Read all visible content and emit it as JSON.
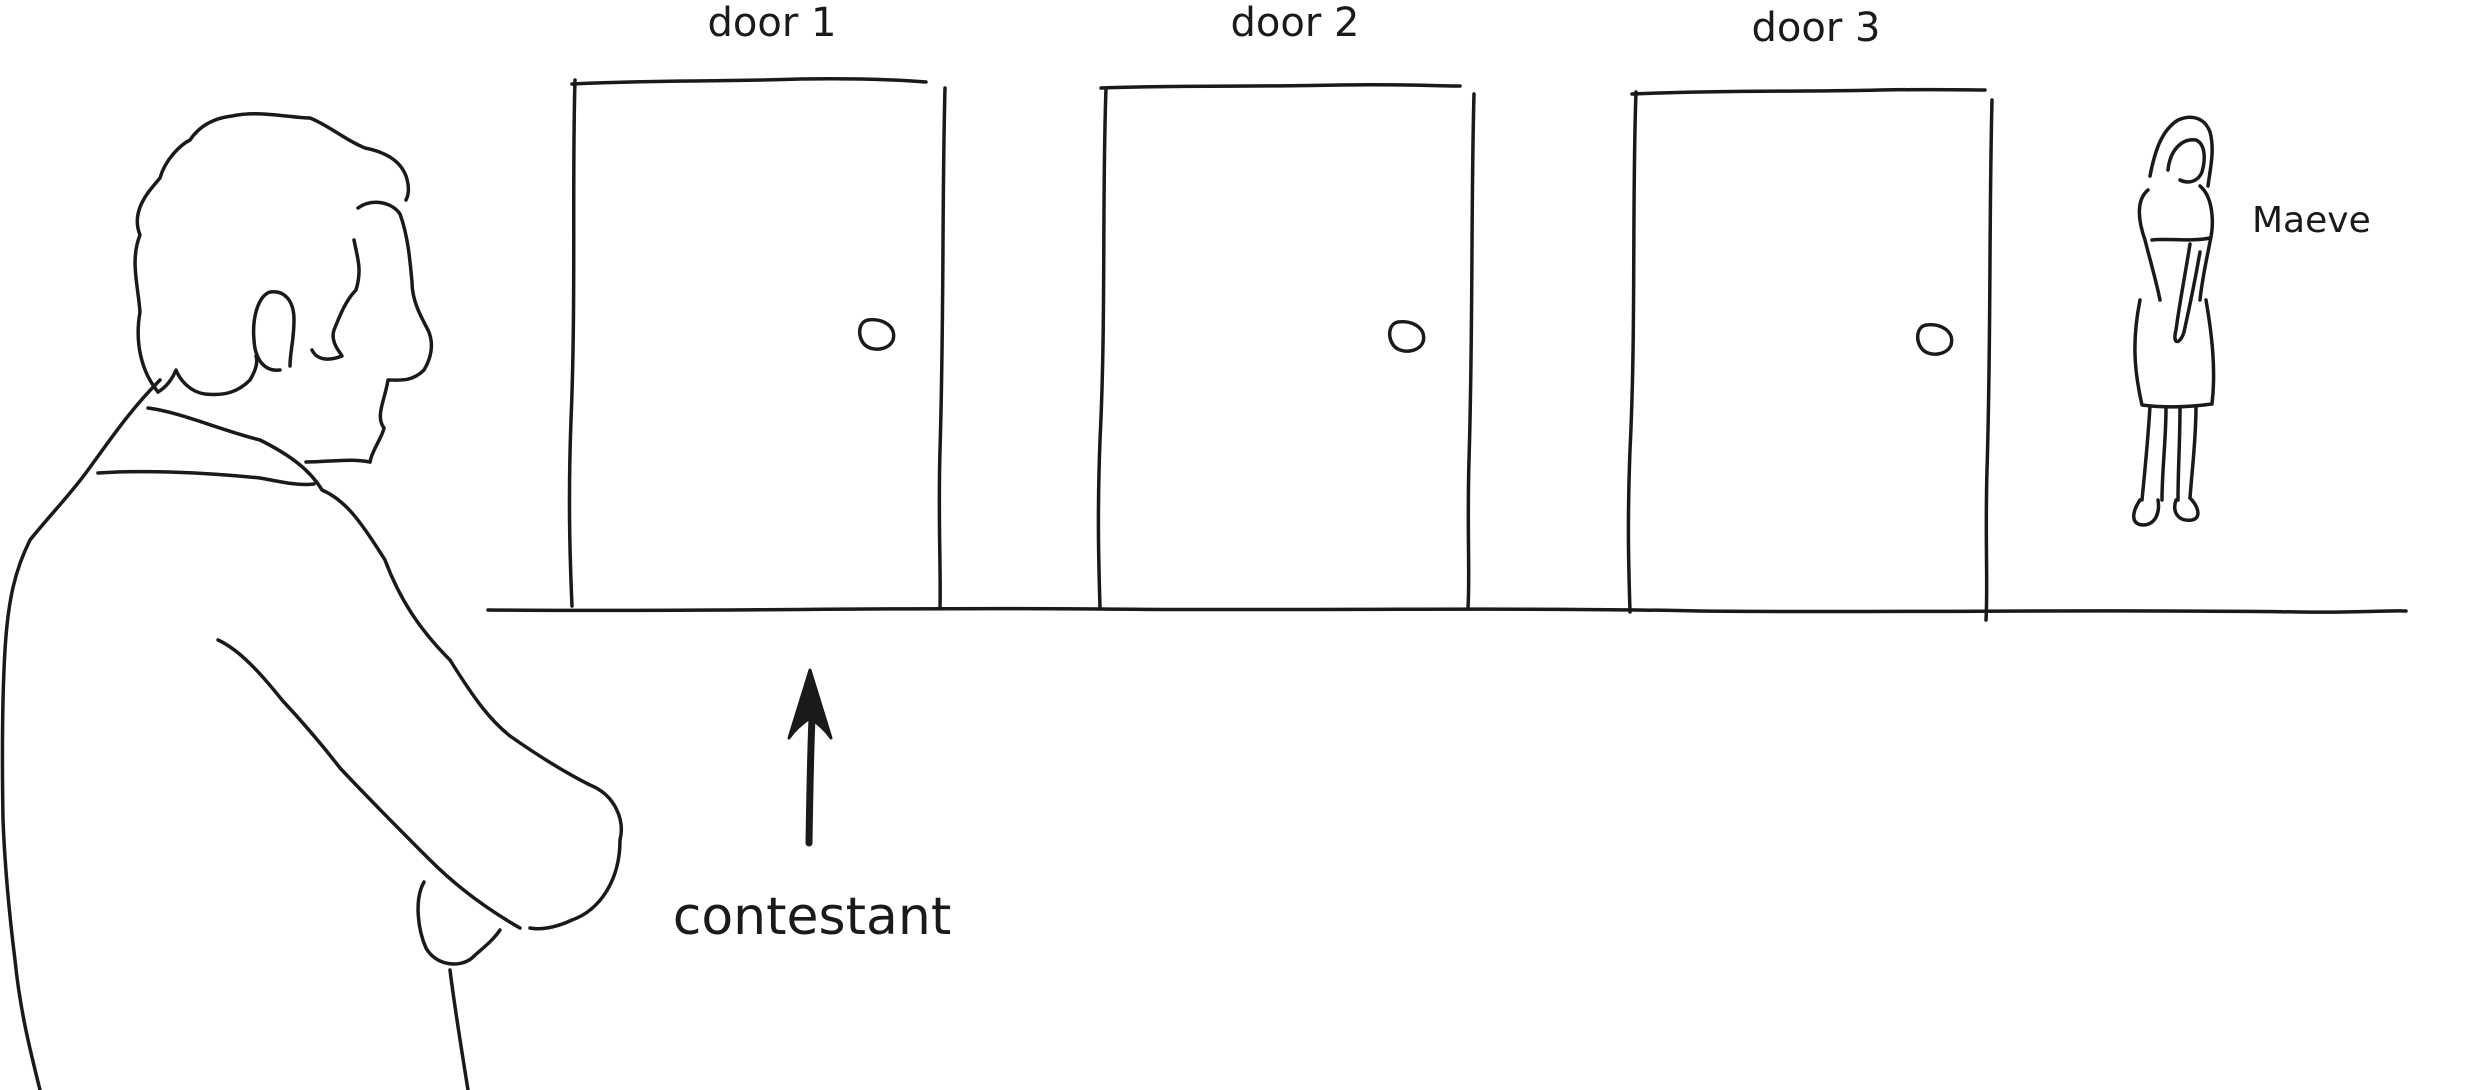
{
  "labels": {
    "door1": "door 1",
    "door2": "door 2",
    "door3": "door 3",
    "contestant": "contestant",
    "maeve": "Maeve"
  },
  "colors": {
    "ink": "#1a1a1a",
    "background": "#ffffff"
  }
}
